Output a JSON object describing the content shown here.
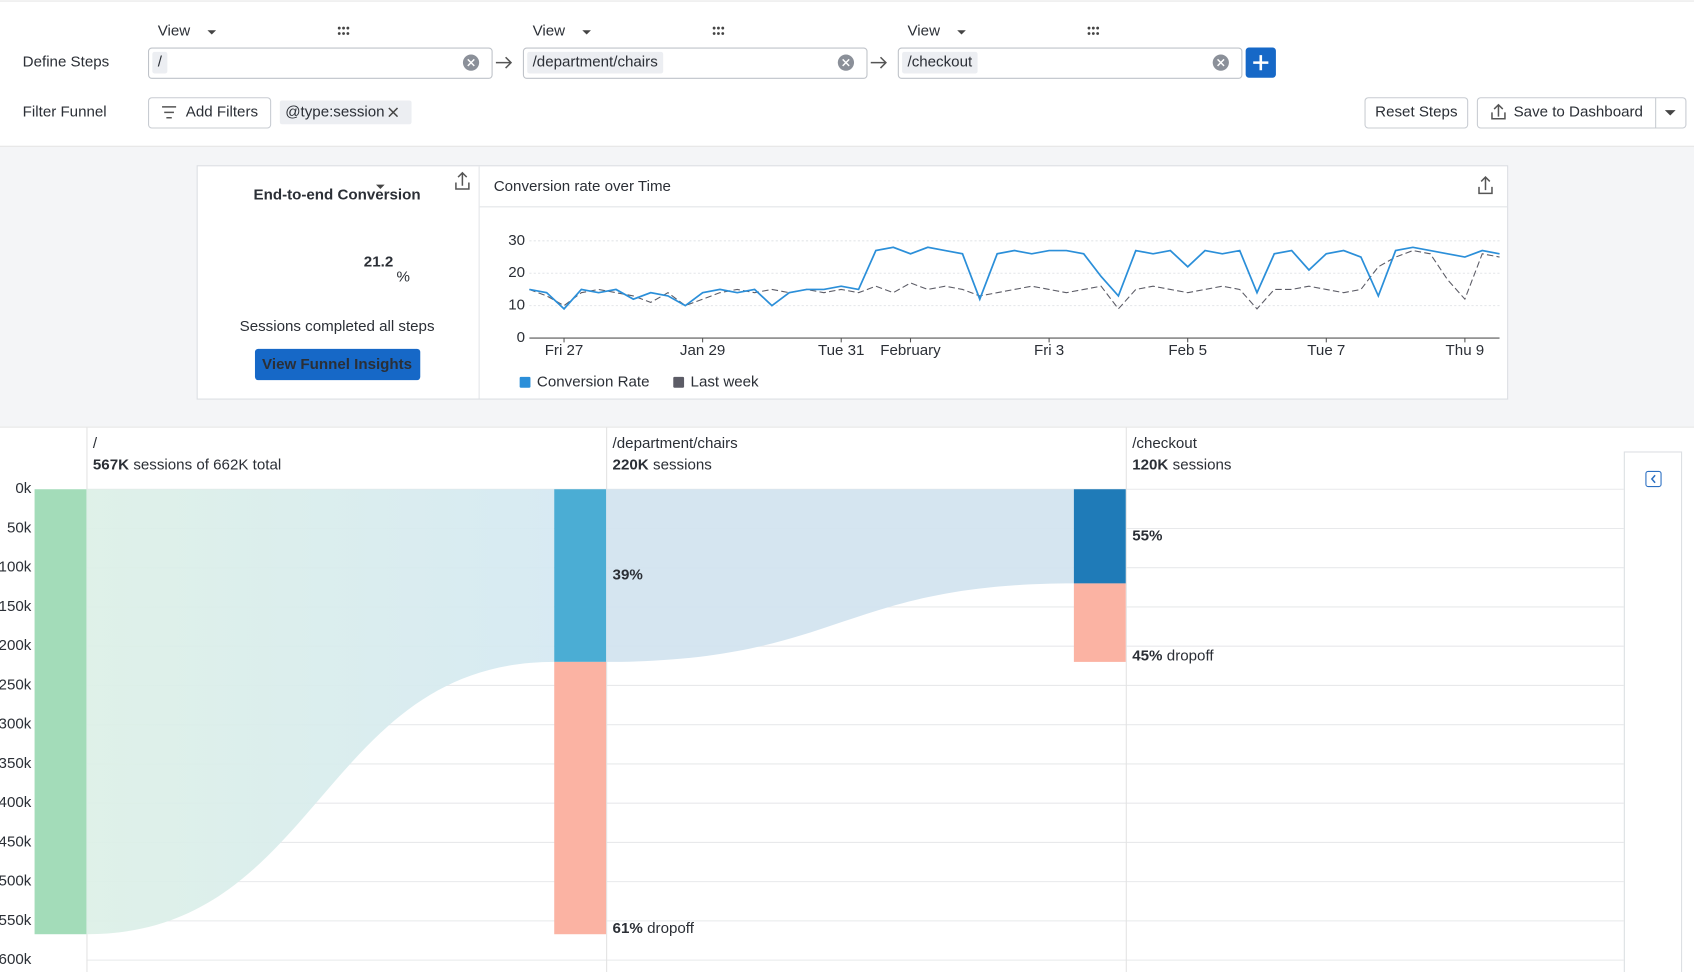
{
  "header": {
    "define_label": "Define Steps",
    "filter_label": "Filter Funnel"
  },
  "steps": [
    {
      "action": "View",
      "path": "/"
    },
    {
      "action": "View",
      "path": "/department/chairs"
    },
    {
      "action": "View",
      "path": "/checkout"
    }
  ],
  "filters": {
    "add_button": "Add Filters",
    "chips": [
      "@type:session"
    ]
  },
  "actions": {
    "reset": "Reset Steps",
    "save": "Save to Dashboard",
    "insights": "View Funnel Insights"
  },
  "summary": {
    "title": "End-to-end Conversion",
    "value": 21.2,
    "unit": "%",
    "caption": "Sessions completed all steps"
  },
  "chart_data": [
    {
      "type": "line",
      "title": "Conversion rate over Time",
      "x": [
        0,
        0.25,
        0.5,
        0.75,
        1,
        1.25,
        1.5,
        1.75,
        2,
        2.25,
        2.5,
        2.75,
        3,
        3.25,
        3.5,
        3.75,
        4,
        4.25,
        4.5,
        4.75,
        5,
        5.25,
        5.5,
        5.75,
        6,
        6.25,
        6.5,
        6.75,
        7,
        7.25,
        7.5,
        7.75,
        8,
        8.25,
        8.5,
        8.75,
        9,
        9.25,
        9.5,
        9.75,
        10,
        10.25,
        10.5,
        10.75,
        11,
        11.25,
        11.5,
        11.75,
        12,
        12.25,
        12.5,
        12.75,
        13,
        13.25,
        13.5,
        13.75,
        14
      ],
      "xlim": [
        0,
        14
      ],
      "xticks": [
        {
          "value": 0.5,
          "label": "Fri 27"
        },
        {
          "value": 2.5,
          "label": "Jan 29"
        },
        {
          "value": 4.5,
          "label": "Tue 31"
        },
        {
          "value": 5.5,
          "label": "February"
        },
        {
          "value": 7.5,
          "label": "Fri 3"
        },
        {
          "value": 9.5,
          "label": "Feb 5"
        },
        {
          "value": 11.5,
          "label": "Tue 7"
        },
        {
          "value": 13.5,
          "label": "Thu 9"
        }
      ],
      "ylim": [
        0,
        30
      ],
      "yticks": [
        0,
        10,
        20,
        30
      ],
      "grid": true,
      "series": [
        {
          "name": "Conversion Rate",
          "color": "#2b8fd9",
          "dash": false,
          "values": [
            15,
            14,
            9,
            15,
            14,
            15,
            12,
            14,
            13,
            10,
            14,
            15,
            14,
            15,
            10,
            14,
            15,
            15,
            16,
            15,
            27,
            28,
            26,
            28,
            27,
            26,
            12,
            26,
            27,
            26,
            27,
            27,
            26,
            19,
            13,
            27,
            26,
            27,
            22,
            27,
            26,
            27,
            14,
            26,
            27,
            21,
            26,
            27,
            25,
            13,
            27,
            28,
            27,
            26,
            25,
            27,
            26
          ]
        },
        {
          "name": "Last week",
          "color": "#5c5c66",
          "dash": true,
          "values": [
            15,
            13,
            10,
            14,
            15,
            14,
            13,
            11,
            14,
            10,
            12,
            14,
            15,
            14,
            15,
            14,
            15,
            14,
            15,
            14,
            16,
            14,
            17,
            15,
            16,
            15,
            13,
            14,
            15,
            16,
            15,
            14,
            15,
            16,
            9,
            15,
            16,
            15,
            14,
            15,
            16,
            15,
            9,
            15,
            15,
            16,
            15,
            14,
            15,
            22,
            25,
            27,
            26,
            18,
            12,
            26,
            25
          ]
        }
      ]
    },
    {
      "type": "funnel",
      "categories": [
        "/",
        "/department/chairs",
        "/checkout"
      ],
      "values": [
        567000,
        220000,
        120000
      ],
      "value_labels": [
        "567K",
        "220K",
        "120K"
      ],
      "sessions_text": [
        "sessions of 662K total",
        "sessions",
        "sessions"
      ],
      "dropoffs": [
        347000,
        100000
      ],
      "conversion_labels": [
        "39%",
        "55%"
      ],
      "dropoff_labels": [
        "61%",
        "45%"
      ],
      "dropoff_word": "dropoff",
      "colors": [
        "#a3dcb9",
        "#4badd4",
        "#1f7bb8"
      ],
      "dropoff_color": "#fbb3a3",
      "ylim": [
        0,
        600000
      ],
      "yticks": [
        {
          "value": 0,
          "label": "0k"
        },
        {
          "value": 50000,
          "label": "50k"
        },
        {
          "value": 100000,
          "label": "100k"
        },
        {
          "value": 150000,
          "label": "150k"
        },
        {
          "value": 200000,
          "label": "200k"
        },
        {
          "value": 250000,
          "label": "250k"
        },
        {
          "value": 300000,
          "label": "300k"
        },
        {
          "value": 350000,
          "label": "350k"
        },
        {
          "value": 400000,
          "label": "400k"
        },
        {
          "value": 450000,
          "label": "450k"
        },
        {
          "value": 500000,
          "label": "500k"
        },
        {
          "value": 550000,
          "label": "550k"
        },
        {
          "value": 600000,
          "label": "600k"
        }
      ],
      "grid": true
    }
  ]
}
